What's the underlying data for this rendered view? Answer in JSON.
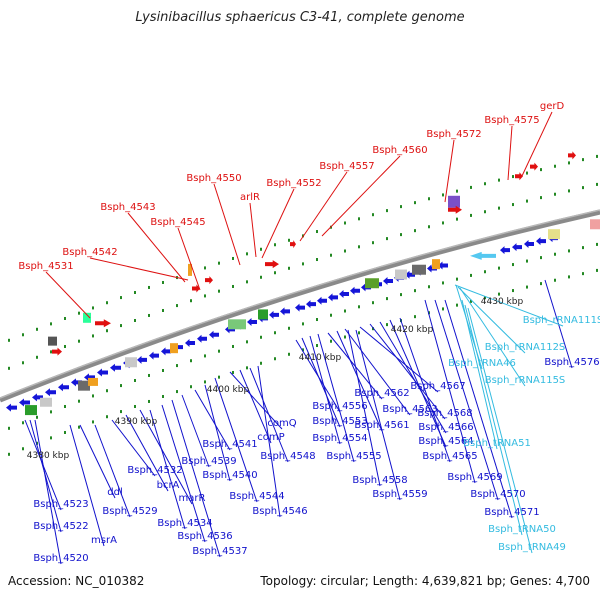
{
  "title": "Lysinibacillus sphaericus C3-41, complete genome",
  "footer": {
    "accession": "Accession: NC_010382",
    "topology": "Topology: circular; Length: 4,639,821 bp; Genes: 4,700"
  },
  "colors": {
    "red": "#dd1111",
    "blue": "#1111cc",
    "cyan": "#33bbe0",
    "backbone": "#888888",
    "tick": "#228822"
  },
  "kbp_labels": [
    "4380 kbp",
    "4390 kbp",
    "4400 kbp",
    "4410 kbp",
    "4420 kbp",
    "4430 kbp"
  ],
  "red_labels": [
    "Bsph_4531",
    "Bsph_4542",
    "Bsph_4543",
    "Bsph_4545",
    "Bsph_4550",
    "arlR",
    "Bsph_4552",
    "Bsph_4557",
    "Bsph_4560",
    "Bsph_4572",
    "Bsph_4575",
    "gerD"
  ],
  "blue_labels": [
    "Bsph_4523",
    "Bsph_4522",
    "Bsph_4520",
    "msrA",
    "ddl",
    "Bsph_4529",
    "Bsph_4532",
    "bcrA",
    "marR",
    "Bsph_4534",
    "Bsph_4536",
    "Bsph_4537",
    "Bsph_4539",
    "Bsph_4541",
    "Bsph_4540",
    "Bsph_4544",
    "comQ",
    "comP",
    "Bsph_4548",
    "Bsph_4546",
    "Bsph_4556",
    "Bsph_4553",
    "Bsph_4554",
    "Bsph_4555",
    "Bsph_4562",
    "Bsph_4561",
    "Bsph_4563",
    "Bsph_4567",
    "Bsph_4568",
    "Bsph_4566",
    "Bsph_4564",
    "Bsph_4565",
    "Bsph_4558",
    "Bsph_4559",
    "Bsph_4569",
    "Bsph_4570",
    "Bsph_4571",
    "Bsph_4576"
  ],
  "cyan_labels": [
    "Bsph_rRNA111S",
    "Bsph_tRNA46",
    "Bsph_rRNA112S",
    "Bsph_rRNA115S",
    "Bsph_tRNA51",
    "Bsph_tRNA50",
    "Bsph_tRNA49"
  ]
}
